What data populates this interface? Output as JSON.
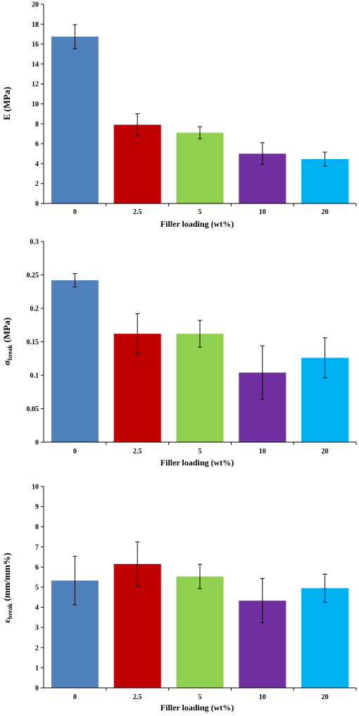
{
  "chart_data": [
    {
      "type": "bar",
      "categories": [
        "0",
        "2.5",
        "5",
        "10",
        "20"
      ],
      "values": [
        16.75,
        7.9,
        7.1,
        5.0,
        4.45
      ],
      "errors": [
        1.2,
        1.1,
        0.6,
        1.1,
        0.7
      ],
      "colors": [
        "#4f81bd",
        "#c00000",
        "#92d050",
        "#7030a0",
        "#00b0f0"
      ],
      "xlabel": "Filler loading (wt%)",
      "ylabel_main": "E (MPa)",
      "ylabel_sub": "",
      "ylabel_tail": "",
      "ylim": [
        0,
        20
      ],
      "yticks": [
        "0",
        "2",
        "4",
        "6",
        "8",
        "10",
        "12",
        "14",
        "16",
        "18",
        "20"
      ]
    },
    {
      "type": "bar",
      "categories": [
        "0",
        "2.5",
        "5",
        "10",
        "20"
      ],
      "values": [
        0.242,
        0.162,
        0.162,
        0.104,
        0.126
      ],
      "errors": [
        0.01,
        0.03,
        0.02,
        0.04,
        0.03
      ],
      "colors": [
        "#4f81bd",
        "#c00000",
        "#92d050",
        "#7030a0",
        "#00b0f0"
      ],
      "xlabel": "Filler loading (wt%)",
      "ylabel_main": "σ",
      "ylabel_sub": "break",
      "ylabel_tail": " (MPa)",
      "ylim": [
        0,
        0.3
      ],
      "yticks": [
        "0",
        "0.05",
        "0.1",
        "0.15",
        "0.2",
        "0.25",
        "0.3"
      ]
    },
    {
      "type": "bar",
      "categories": [
        "0",
        "2.5",
        "5",
        "10",
        "20"
      ],
      "values": [
        5.33,
        6.15,
        5.53,
        4.33,
        4.95
      ],
      "errors": [
        1.2,
        1.1,
        0.6,
        1.1,
        0.7
      ],
      "colors": [
        "#4f81bd",
        "#c00000",
        "#92d050",
        "#7030a0",
        "#00b0f0"
      ],
      "xlabel": "Filler loading (wt%)",
      "ylabel_main": "ε",
      "ylabel_sub": "break",
      "ylabel_tail": " (mm/mm%)",
      "ylim": [
        0,
        10
      ],
      "yticks": [
        "0",
        "1",
        "2",
        "3",
        "4",
        "5",
        "6",
        "7",
        "8",
        "9",
        "10"
      ]
    }
  ]
}
